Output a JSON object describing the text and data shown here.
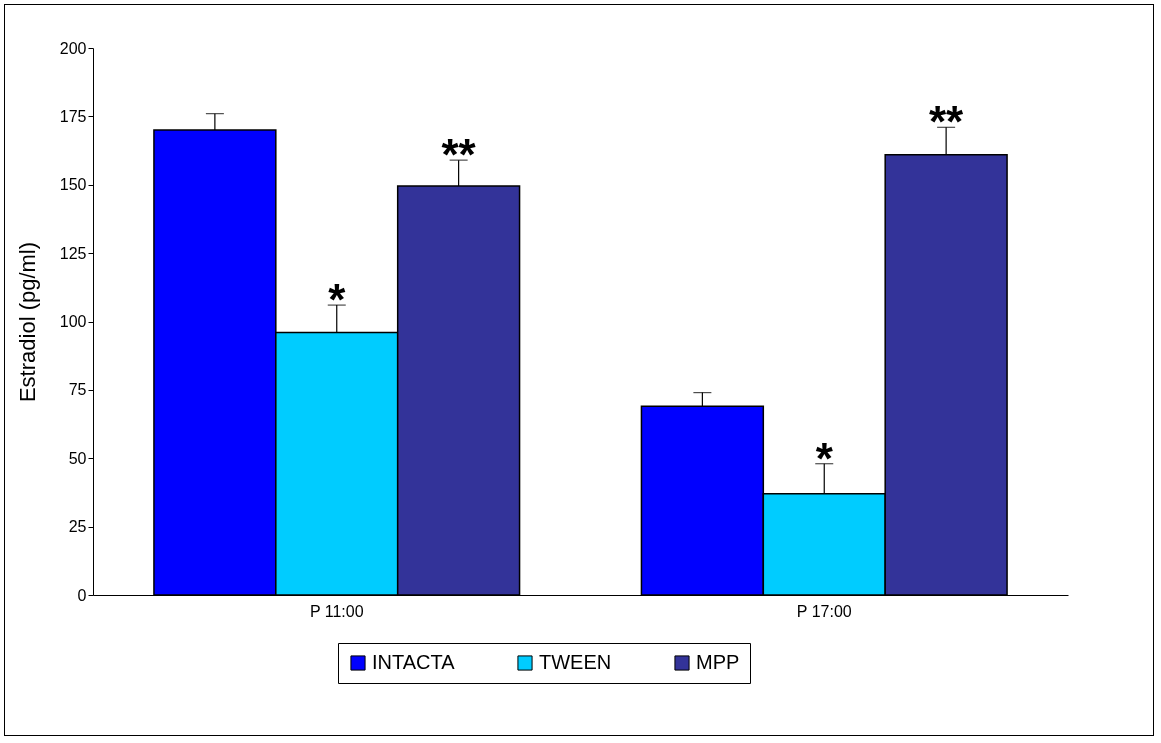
{
  "chart_data": {
    "type": "bar",
    "ylabel": "Estradiol (pg/ml)",
    "categories": [
      "P 11:00",
      "P 17:00"
    ],
    "series": [
      {
        "name": "INTACTA",
        "color": "#0000ff",
        "values": [
          170,
          69
        ],
        "errors": [
          [
            170,
            176
          ],
          [
            69,
            74
          ]
        ]
      },
      {
        "name": "TWEEN",
        "color": "#00ccff",
        "values": [
          96,
          37
        ],
        "errors": [
          [
            96,
            106
          ],
          [
            37,
            48
          ]
        ]
      },
      {
        "name": "MPP",
        "color": "#333399",
        "values": [
          149.5,
          161
        ],
        "errors": [
          [
            149.5,
            159
          ],
          [
            161,
            171
          ]
        ]
      }
    ],
    "ylim": [
      0,
      200
    ],
    "yticks": [
      0,
      25,
      50,
      75,
      100,
      125,
      150,
      175,
      200
    ],
    "grid": false,
    "legend": "bottom",
    "annotations": [
      {
        "text": "*",
        "x": "P 11:00",
        "y": 96
      },
      "**",
      {
        "text": "*",
        "x": "P 17:00",
        "y": 37
      },
      "**"
    ]
  }
}
